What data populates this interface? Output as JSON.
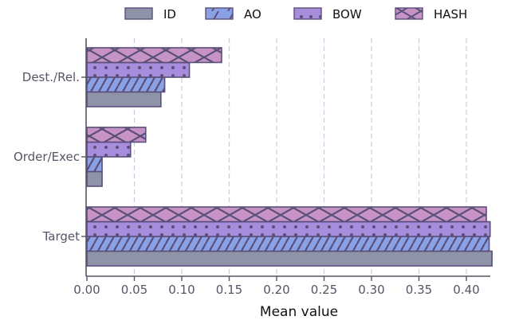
{
  "chart_data": {
    "type": "bar",
    "orientation": "horizontal",
    "title": "",
    "xlabel": "Mean value",
    "ylabel": "",
    "xlim": [
      0,
      0.4425
    ],
    "xticks": [
      0.0,
      0.05,
      0.1,
      0.15,
      0.2,
      0.25,
      0.3,
      0.35,
      0.4
    ],
    "xtick_labels": [
      "0.00",
      "0.05",
      "0.10",
      "0.15",
      "0.20",
      "0.25",
      "0.30",
      "0.35",
      "0.40"
    ],
    "categories": [
      "Target",
      "Order/Exec",
      "Dest./Rel."
    ],
    "series": [
      {
        "name": "ID",
        "values": [
          0.427,
          0.016,
          0.078
        ],
        "color": "#8f93a8",
        "hatch": "none"
      },
      {
        "name": "AO",
        "values": [
          0.424,
          0.016,
          0.082
        ],
        "color": "#8aa1e6",
        "hatch": "diagonal"
      },
      {
        "name": "BOW",
        "values": [
          0.425,
          0.046,
          0.108
        ],
        "color": "#a78ddc",
        "hatch": "dots"
      },
      {
        "name": "HASH",
        "values": [
          0.421,
          0.062,
          0.142
        ],
        "color": "#c693c4",
        "hatch": "cross"
      }
    ],
    "grid": "vertical dashed",
    "legend": "top"
  }
}
